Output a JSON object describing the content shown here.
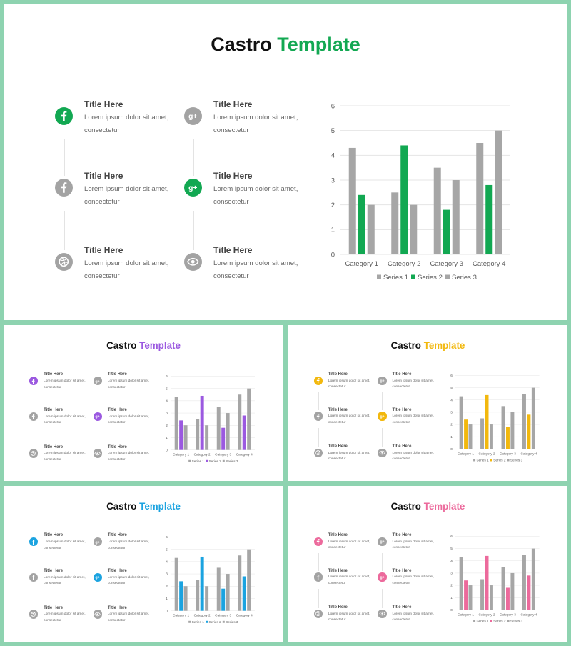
{
  "slides": [
    {
      "title_main": "Castro",
      "title_accent": "Template",
      "accent": "#12a852",
      "items": [
        {
          "title": "Title Here",
          "body": "Lorem ipsum dolor sit amet, consectetur",
          "icon": "facebook-icon"
        },
        {
          "title": "Title Here",
          "body": "Lorem ipsum dolor sit amet, consectetur",
          "icon": "google-plus-icon"
        },
        {
          "title": "Title Here",
          "body": "Lorem ipsum dolor sit amet, consectetur",
          "icon": "facebook-icon"
        },
        {
          "title": "Title Here",
          "body": "Lorem ipsum dolor sit amet, consectetur",
          "icon": "google-plus-icon"
        },
        {
          "title": "Title Here",
          "body": "Lorem ipsum dolor sit amet, consectetur",
          "icon": "dribbble-icon"
        },
        {
          "title": "Title Here",
          "body": "Lorem ipsum dolor sit amet, consectetur",
          "icon": "eye-icon"
        }
      ],
      "active_items": [
        0,
        3
      ]
    },
    {
      "title_main": "Castro",
      "title_accent": "Template",
      "accent": "#9b59e0",
      "items": [
        {
          "title": "Title Here",
          "body": "Lorem ipsum dolor sit amet, consectetur",
          "icon": "facebook-icon"
        },
        {
          "title": "Title Here",
          "body": "Lorem ipsum dolor sit amet, consectetur",
          "icon": "google-plus-icon"
        },
        {
          "title": "Title Here",
          "body": "Lorem ipsum dolor sit amet, consectetur",
          "icon": "facebook-icon"
        },
        {
          "title": "Title Here",
          "body": "Lorem ipsum dolor sit amet, consectetur",
          "icon": "google-plus-icon"
        },
        {
          "title": "Title Here",
          "body": "Lorem ipsum dolor sit amet, consectetur",
          "icon": "dribbble-icon"
        },
        {
          "title": "Title Here",
          "body": "Lorem ipsum dolor sit amet, consectetur",
          "icon": "eye-icon"
        }
      ],
      "active_items": [
        0,
        3
      ]
    },
    {
      "title_main": "Castro",
      "title_accent": "Template",
      "accent": "#f2b80e",
      "items": [
        {
          "title": "Title Here",
          "body": "Lorem ipsum dolor sit amet, consectetur",
          "icon": "facebook-icon"
        },
        {
          "title": "Title Here",
          "body": "Lorem ipsum dolor sit amet, consectetur",
          "icon": "google-plus-icon"
        },
        {
          "title": "Title Here",
          "body": "Lorem ipsum dolor sit amet, consectetur",
          "icon": "facebook-icon"
        },
        {
          "title": "Title Here",
          "body": "Lorem ipsum dolor sit amet, consectetur",
          "icon": "google-plus-icon"
        },
        {
          "title": "Title Here",
          "body": "Lorem ipsum dolor sit amet, consectetur",
          "icon": "dribbble-icon"
        },
        {
          "title": "Title Here",
          "body": "Lorem ipsum dolor sit amet, consectetur",
          "icon": "eye-icon"
        }
      ],
      "active_items": [
        0,
        3
      ]
    },
    {
      "title_main": "Castro",
      "title_accent": "Template",
      "accent": "#1ba3e0",
      "items": [
        {
          "title": "Title Here",
          "body": "Lorem ipsum dolor sit amet, consectetur",
          "icon": "facebook-icon"
        },
        {
          "title": "Title Here",
          "body": "Lorem ipsum dolor sit amet, consectetur",
          "icon": "google-plus-icon"
        },
        {
          "title": "Title Here",
          "body": "Lorem ipsum dolor sit amet, consectetur",
          "icon": "facebook-icon"
        },
        {
          "title": "Title Here",
          "body": "Lorem ipsum dolor sit amet, consectetur",
          "icon": "google-plus-icon"
        },
        {
          "title": "Title Here",
          "body": "Lorem ipsum dolor sit amet, consectetur",
          "icon": "dribbble-icon"
        },
        {
          "title": "Title Here",
          "body": "Lorem ipsum dolor sit amet, consectetur",
          "icon": "eye-icon"
        }
      ],
      "active_items": [
        0,
        3
      ]
    },
    {
      "title_main": "Castro",
      "title_accent": "Template",
      "accent": "#ec6a9c",
      "items": [
        {
          "title": "Title Here",
          "body": "Lorem ipsum dolor sit amet, consectetur",
          "icon": "facebook-icon"
        },
        {
          "title": "Title Here",
          "body": "Lorem ipsum dolor sit amet, consectetur",
          "icon": "google-plus-icon"
        },
        {
          "title": "Title Here",
          "body": "Lorem ipsum dolor sit amet, consectetur",
          "icon": "facebook-icon"
        },
        {
          "title": "Title Here",
          "body": "Lorem ipsum dolor sit amet, consectetur",
          "icon": "google-plus-icon"
        },
        {
          "title": "Title Here",
          "body": "Lorem ipsum dolor sit amet, consectetur",
          "icon": "dribbble-icon"
        },
        {
          "title": "Title Here",
          "body": "Lorem ipsum dolor sit amet, consectetur",
          "icon": "eye-icon"
        }
      ],
      "active_items": [
        0,
        3
      ]
    }
  ],
  "colors": {
    "gray_bar": "#a6a6a6",
    "gray_icon": "#a3a3a3",
    "grid": "#e5e5e5",
    "axis_text": "#595959"
  },
  "chart_data": {
    "type": "bar",
    "categories": [
      "Category 1",
      "Category 2",
      "Category 3",
      "Category 4"
    ],
    "series": [
      {
        "name": "Series 1",
        "values": [
          4.3,
          2.5,
          3.5,
          4.5
        ]
      },
      {
        "name": "Series 2",
        "values": [
          2.4,
          4.4,
          1.8,
          2.8
        ]
      },
      {
        "name": "Series 3",
        "values": [
          2,
          2,
          3,
          5
        ]
      }
    ],
    "yticks": [
      0,
      1,
      2,
      3,
      4,
      5,
      6
    ],
    "ylim": [
      0,
      6
    ],
    "grid": true,
    "legend": "bottom"
  }
}
